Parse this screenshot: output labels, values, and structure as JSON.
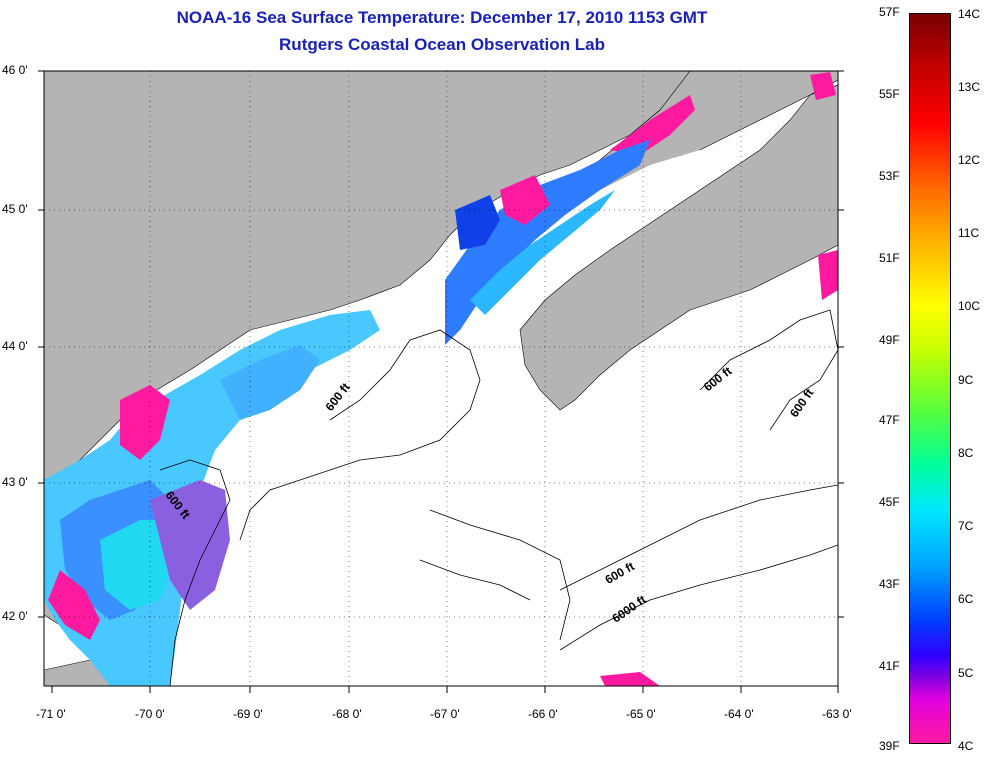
{
  "title_line1": "NOAA-16 Sea Surface Temperature:  December 17, 2010 1153 GMT",
  "title_line2": "Rutgers Coastal Ocean Observation Lab",
  "lat_labels": [
    "46 0'",
    "45 0'",
    "44 0'",
    "43 0'",
    "42 0'"
  ],
  "lon_labels": [
    "-71 0'",
    "-70 0'",
    "-69 0'",
    "-68 0'",
    "-67 0'",
    "-66 0'",
    "-65 0'",
    "-64 0'",
    "-63 0'"
  ],
  "contour_labels": [
    "600 ft",
    "600 ft",
    "600 ft",
    "600 ft",
    "600 ft",
    "6000 ft"
  ],
  "colorbar": {
    "fahrenheit": [
      "57F",
      "55F",
      "53F",
      "51F",
      "49F",
      "47F",
      "45F",
      "43F",
      "41F",
      "39F"
    ],
    "celsius": [
      "14C",
      "13C",
      "12C",
      "11C",
      "10C",
      "9C",
      "8C",
      "7C",
      "6C",
      "5C",
      "4C"
    ]
  },
  "colors": {
    "title": "#1a22b4",
    "land": "#b4b4b4",
    "cold": "#ff1aa0",
    "warm": "#7a0000"
  }
}
